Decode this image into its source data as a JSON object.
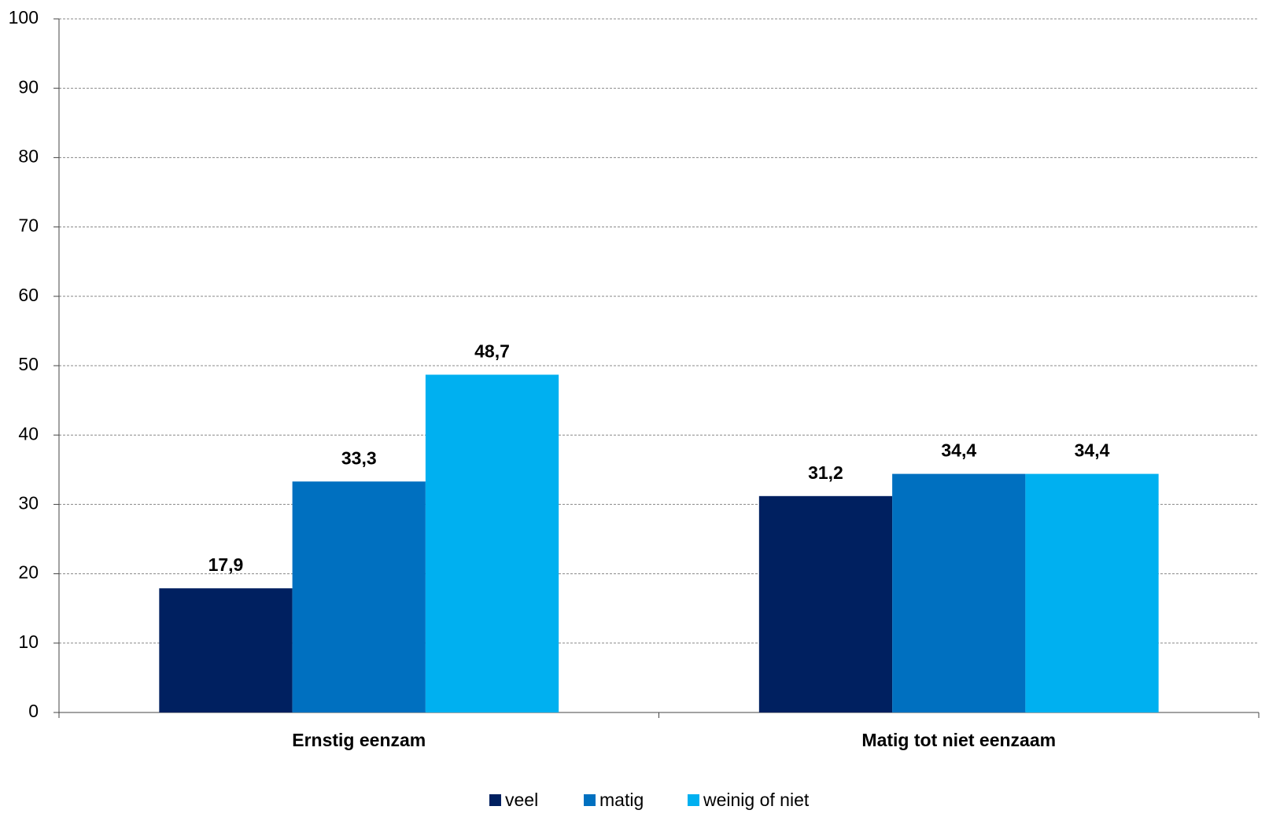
{
  "chart_data": {
    "type": "bar",
    "categories": [
      "Ernstig eenzam",
      "Matig tot niet eenzaam"
    ],
    "series": [
      {
        "name": "veel",
        "color": "#002060",
        "values": [
          17.9,
          31.2
        ],
        "value_labels": [
          "17,9",
          "31,2"
        ]
      },
      {
        "name": "matig",
        "color": "#0070c0",
        "values": [
          33.3,
          34.4
        ],
        "value_labels": [
          "33,3",
          "34,4"
        ]
      },
      {
        "name": "weinig of niet",
        "color": "#00b0f0",
        "values": [
          48.7,
          34.4
        ],
        "value_labels": [
          "48,7",
          "34,4"
        ]
      }
    ],
    "ylim": [
      0,
      100
    ],
    "yticks": [
      0,
      10,
      20,
      30,
      40,
      50,
      60,
      70,
      80,
      90,
      100
    ],
    "grid": true,
    "legend": "bottom"
  }
}
